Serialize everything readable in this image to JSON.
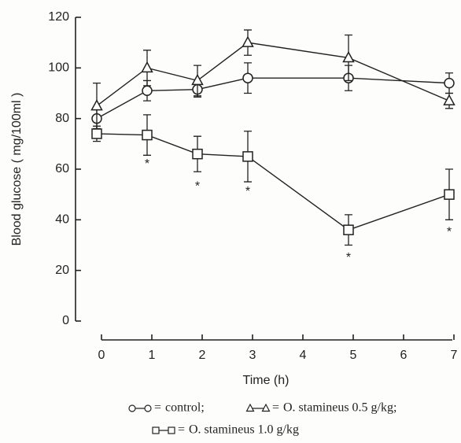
{
  "chart_data": {
    "type": "line",
    "x_label": "Time (h)",
    "y_label": "Blood glucose ( mg/100ml )",
    "x": [
      0,
      1,
      2,
      3,
      5,
      7
    ],
    "xlim": [
      0,
      7
    ],
    "xticks": [
      0,
      1,
      2,
      3,
      4,
      5,
      6,
      7
    ],
    "ylim": [
      0,
      120
    ],
    "yticks": [
      0,
      20,
      40,
      60,
      80,
      100,
      120
    ],
    "legend_separator": "=",
    "legend_delimiter": ";",
    "series": [
      {
        "name": "control",
        "marker": "circle",
        "color": "#222222",
        "values": [
          80,
          91,
          91.5,
          96,
          96,
          94
        ],
        "errors": [
          4,
          4,
          3,
          6,
          5,
          4
        ]
      },
      {
        "name": "O. stamineus 0.5 g/kg",
        "marker": "triangle",
        "color": "#222222",
        "values": [
          85,
          100,
          95,
          110,
          104,
          87
        ],
        "errors": [
          9,
          7,
          6,
          5,
          9,
          3
        ]
      },
      {
        "name": "O. stamineus 1.0 g/kg",
        "marker": "square",
        "color": "#222222",
        "values": [
          74,
          73.5,
          66,
          65,
          36,
          50
        ],
        "errors": [
          3,
          8,
          7,
          10,
          6,
          10
        ]
      }
    ],
    "annotations": [
      {
        "x": 1,
        "y": 62,
        "text": "*"
      },
      {
        "x": 2,
        "y": 53,
        "text": "*"
      },
      {
        "x": 3,
        "y": 51,
        "text": "*"
      },
      {
        "x": 5,
        "y": 25,
        "text": "*"
      },
      {
        "x": 7,
        "y": 35,
        "text": "*"
      }
    ]
  }
}
